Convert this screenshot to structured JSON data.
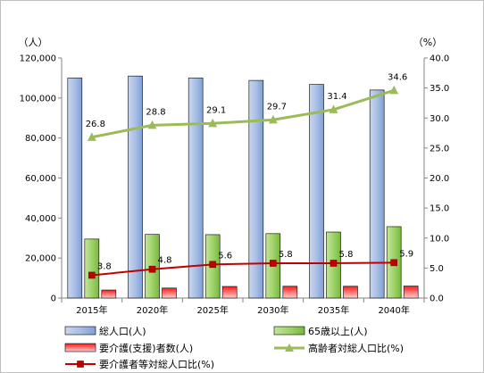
{
  "chart_data": {
    "type": "bar",
    "categories": [
      "2015年",
      "2020年",
      "2025年",
      "2030年",
      "2035年",
      "2040年"
    ],
    "left_axis": {
      "unit_label": "（人）",
      "ylim": [
        0,
        120000
      ],
      "ticks": [
        "0",
        "20,000",
        "40,000",
        "60,000",
        "80,000",
        "100,000",
        "120,000"
      ],
      "tick_values": [
        0,
        20000,
        40000,
        60000,
        80000,
        100000,
        120000
      ]
    },
    "right_axis": {
      "unit_label": "（%）",
      "ylim": [
        0,
        40
      ],
      "ticks": [
        "0.0",
        "5.0",
        "10.0",
        "15.0",
        "20.0",
        "25.0",
        "30.0",
        "35.0",
        "40.0"
      ],
      "tick_values": [
        0,
        5,
        10,
        15,
        20,
        25,
        30,
        35,
        40
      ]
    },
    "series": [
      {
        "name": "総人口(人)",
        "kind": "bar",
        "axis": "left",
        "color": "#8faadc",
        "values": [
          110000,
          111000,
          110000,
          108800,
          106800,
          104000
        ]
      },
      {
        "name": "65歳以上(人)",
        "kind": "bar",
        "axis": "left",
        "color": "#92d050",
        "values": [
          29500,
          31800,
          31700,
          32200,
          33000,
          35700
        ]
      },
      {
        "name": "要介護(支援)者数(人)",
        "kind": "bar",
        "axis": "left",
        "color": "#ff0000",
        "values": [
          4000,
          5000,
          5800,
          5900,
          5900,
          6000
        ]
      },
      {
        "name": "高齢者対総人口比(%)",
        "kind": "line",
        "axis": "right",
        "color": "#9bbb59",
        "values": [
          26.8,
          28.8,
          29.1,
          29.7,
          31.4,
          34.6
        ],
        "labels": [
          "26.8",
          "28.8",
          "29.1",
          "29.7",
          "31.4",
          "34.6"
        ]
      },
      {
        "name": "要介護者等対総人口比(%)",
        "kind": "line",
        "axis": "right",
        "color": "#c00000",
        "values": [
          3.8,
          4.8,
          5.6,
          5.8,
          5.8,
          5.9
        ],
        "labels": [
          "3.8",
          "4.8",
          "5.6",
          "5.8",
          "5.8",
          "5.9"
        ]
      }
    ],
    "grid": false,
    "legend": "bottom"
  }
}
